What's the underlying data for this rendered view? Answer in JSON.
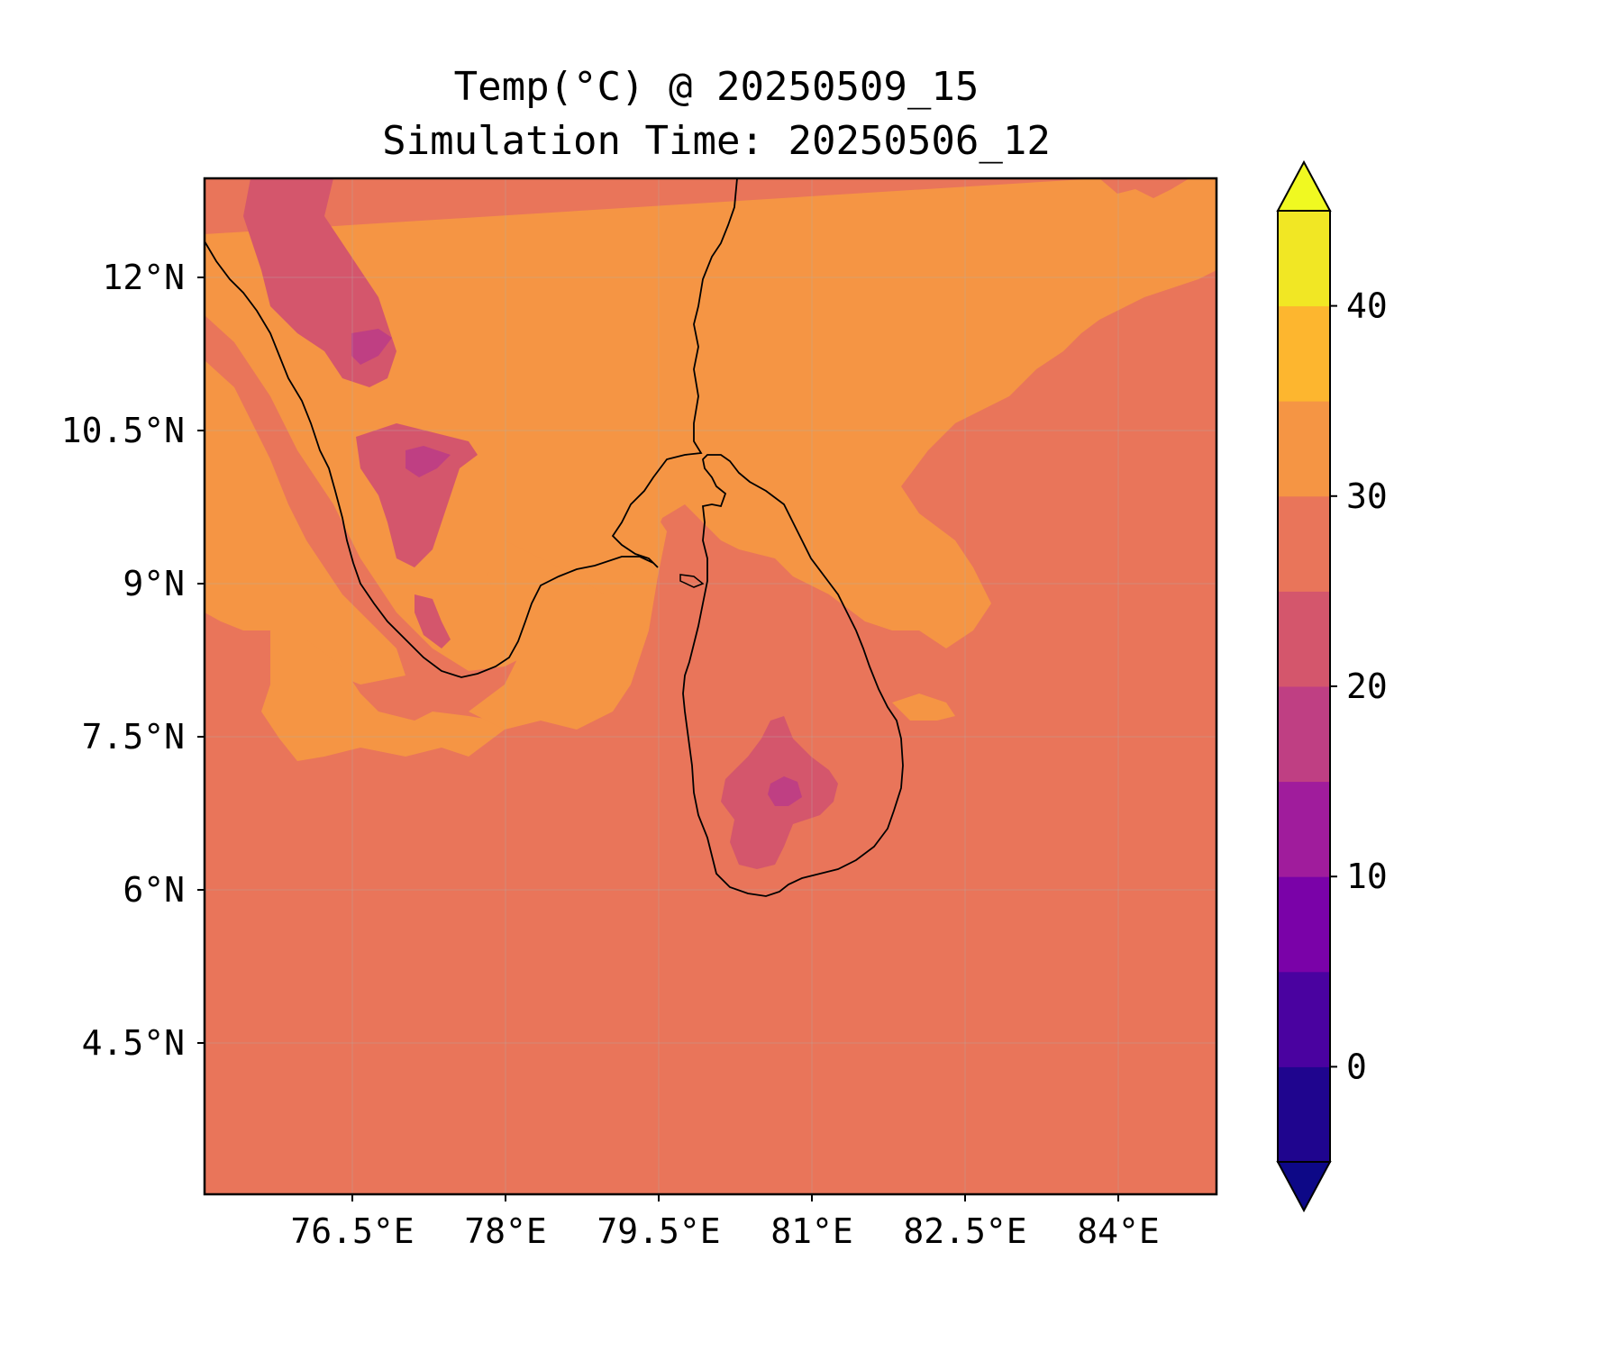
{
  "title": {
    "line1": "Temp(°C) @ 20250509_15",
    "line2": "Simulation Time: 20250506_12"
  },
  "map": {
    "lon_range": [
      75.0,
      84.9
    ],
    "lat_range": [
      3.0,
      12.95
    ],
    "x_ticks": [
      "76.5°E",
      "78°E",
      "79.5°E",
      "81°E",
      "82.5°E",
      "84°E"
    ],
    "y_ticks": [
      "12°N",
      "10.5°N",
      "9°N",
      "7.5°N",
      "6°N",
      "4.5°N"
    ],
    "background_value_label": "25–30",
    "colors": {
      "c25_30": "#e9755a",
      "c30_35": "#f59544",
      "c20_25": "#d4566c",
      "c15_20": "#bf3f83",
      "coastline": "#000000"
    }
  },
  "colorbar": {
    "ticks": [
      "0",
      "10",
      "20",
      "30",
      "40"
    ],
    "extend": "both",
    "colors": [
      "#1a0887",
      "#3d049b",
      "#6100a6",
      "#8305a7",
      "#a22b97",
      "#bf3f83",
      "#d4566c",
      "#e9755a",
      "#f59544",
      "#fdb62f",
      "#f1e724",
      "#f0f921",
      "#0d0887"
    ]
  }
}
